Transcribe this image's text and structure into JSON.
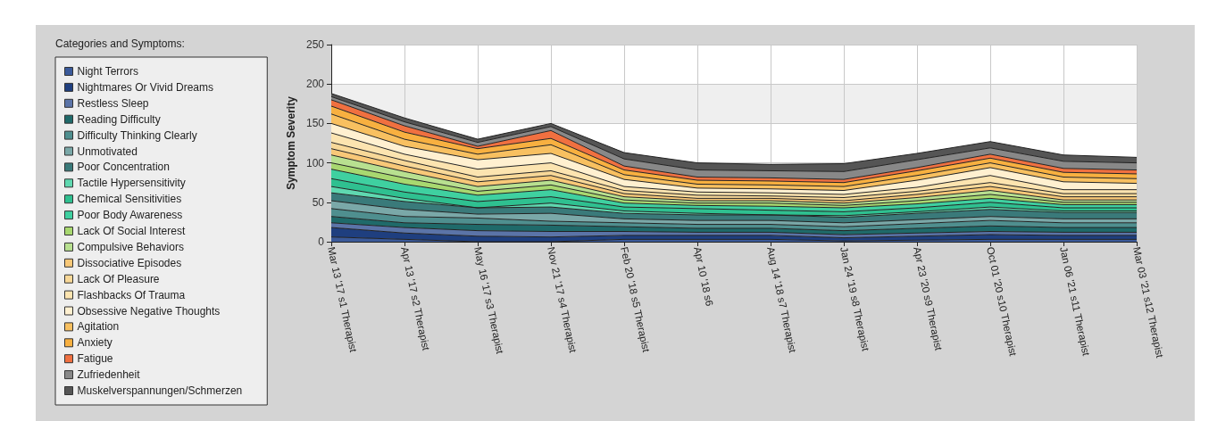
{
  "chart_data": {
    "type": "area",
    "stacked": true,
    "ylabel": "Symptom Severity",
    "legend_title": "Categories and Symptoms:",
    "legend": "left",
    "grid": true,
    "ylim": [
      0,
      250
    ],
    "yticks": [
      0,
      50,
      100,
      150,
      200,
      250
    ],
    "categories": [
      "Mar 13 '17 s1 Therapist",
      "Apr 13 '17 s2 Therapist",
      "May 16 '17 s3 Therapist",
      "Nov 21 '17 s4 Therapist",
      "Feb 20 '18 s5 Therapist",
      "Apr 10 '18 s6",
      "Aug 14 '18 s7 Therapist",
      "Jan 24 '19 s8 Therapist",
      "Apr 23 '20 s9 Therapist",
      "Oct 01 '20 s10 Therapist",
      "Jan 06 '21 s11 Therapist",
      "Mar 03 '21 s12 Therapist"
    ],
    "series": [
      {
        "name": "Night Terrors",
        "color": "#3b5a9a",
        "values": [
          6,
          3,
          0,
          0,
          3,
          3,
          3,
          1,
          2,
          3,
          3,
          3
        ]
      },
      {
        "name": "Nightmares Or Vivid Dreams",
        "color": "#1f3f7f",
        "values": [
          12,
          8,
          7,
          6,
          5,
          5,
          5,
          4,
          5,
          6,
          5,
          5
        ]
      },
      {
        "name": "Restless Sleep",
        "color": "#5b74a8",
        "values": [
          6,
          7,
          7,
          7,
          5,
          4,
          4,
          4,
          4,
          4,
          4,
          4
        ]
      },
      {
        "name": "Reading Difficulty",
        "color": "#1f6a6a",
        "values": [
          8,
          6,
          8,
          8,
          6,
          5,
          5,
          5,
          6,
          7,
          6,
          6
        ]
      },
      {
        "name": "Difficulty Thinking Clearly",
        "color": "#4f8f8f",
        "values": [
          10,
          8,
          8,
          5,
          5,
          5,
          5,
          5,
          6,
          7,
          6,
          6
        ]
      },
      {
        "name": "Unmotivated",
        "color": "#7aa8a8",
        "values": [
          10,
          9,
          5,
          10,
          5,
          5,
          5,
          5,
          5,
          5,
          5,
          5
        ]
      },
      {
        "name": "Poor Concentration",
        "color": "#3a7a7a",
        "values": [
          10,
          10,
          8,
          8,
          7,
          7,
          7,
          7,
          8,
          9,
          8,
          8
        ]
      },
      {
        "name": "Tactile Hypersensitivity",
        "color": "#5fd8b0",
        "values": [
          8,
          4,
          0,
          5,
          3,
          2,
          0,
          2,
          2,
          3,
          2,
          2
        ]
      },
      {
        "name": "Chemical Sensitivities",
        "color": "#2fc090",
        "values": [
          10,
          8,
          8,
          8,
          5,
          6,
          6,
          5,
          5,
          6,
          4,
          4
        ]
      },
      {
        "name": "Poor Body Awareness",
        "color": "#3fd0a0",
        "values": [
          12,
          10,
          8,
          9,
          5,
          4,
          5,
          5,
          5,
          5,
          4,
          4
        ]
      },
      {
        "name": "Lack Of Social Interest",
        "color": "#a8d870",
        "values": [
          8,
          8,
          5,
          6,
          4,
          3,
          4,
          3,
          4,
          5,
          3,
          3
        ]
      },
      {
        "name": "Compulsive Behaviors",
        "color": "#b8e090",
        "values": [
          10,
          8,
          6,
          6,
          4,
          3,
          3,
          3,
          4,
          5,
          3,
          3
        ]
      },
      {
        "name": "Dissociative Episodes",
        "color": "#f8c878",
        "values": [
          8,
          7,
          6,
          6,
          4,
          3,
          3,
          3,
          4,
          5,
          4,
          4
        ]
      },
      {
        "name": "Lack Of Pleasure",
        "color": "#f8d898",
        "values": [
          8,
          7,
          6,
          6,
          4,
          4,
          3,
          4,
          4,
          5,
          4,
          4
        ]
      },
      {
        "name": "Flashbacks Of Trauma",
        "color": "#fce4b0",
        "values": [
          12,
          8,
          10,
          10,
          5,
          4,
          4,
          4,
          5,
          9,
          5,
          5
        ]
      },
      {
        "name": "Obsessive Negative Thoughts",
        "color": "#fff0d0",
        "values": [
          12,
          10,
          12,
          12,
          9,
          5,
          5,
          5,
          9,
          10,
          10,
          8
        ]
      },
      {
        "name": "Agitation",
        "color": "#f8c060",
        "values": [
          12,
          9,
          7,
          11,
          6,
          5,
          5,
          5,
          6,
          6,
          6,
          6
        ]
      },
      {
        "name": "Anxiety",
        "color": "#f8b040",
        "values": [
          10,
          9,
          7,
          8,
          6,
          5,
          5,
          5,
          6,
          6,
          6,
          6
        ]
      },
      {
        "name": "Fatigue",
        "color": "#f07040",
        "values": [
          8,
          8,
          3,
          10,
          5,
          4,
          4,
          4,
          4,
          5,
          5,
          5
        ]
      },
      {
        "name": "Zufriedenheit",
        "color": "#888888",
        "values": [
          4,
          5,
          5,
          5,
          9,
          9,
          9,
          10,
          10,
          8,
          9,
          9
        ]
      },
      {
        "name": "Muskelverspannungen/Schmerzen",
        "color": "#555555",
        "values": [
          4,
          5,
          4,
          4,
          8,
          9,
          8,
          10,
          8,
          8,
          8,
          7
        ]
      }
    ]
  }
}
